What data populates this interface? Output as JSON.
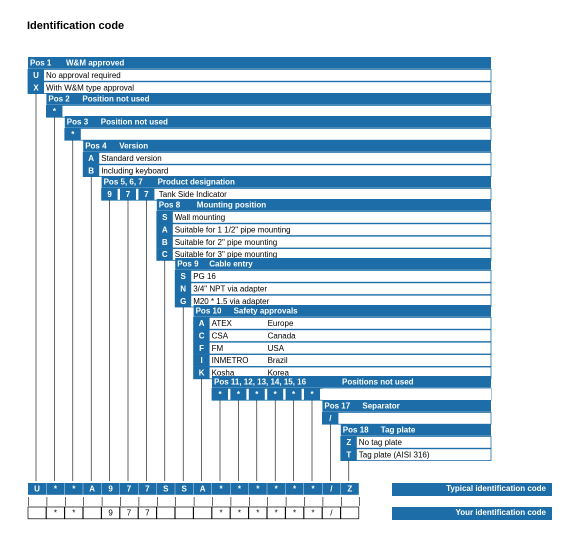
{
  "title": "Identification code",
  "colors": {
    "header": "#1d6ea8"
  },
  "groups": [
    {
      "pos": "Pos 1",
      "name": "W&M approved",
      "options": [
        {
          "code": "U",
          "text": "No approval required"
        },
        {
          "code": "X",
          "text": "With W&M type approval"
        }
      ]
    },
    {
      "pos": "Pos 2",
      "name": "Position not used",
      "options": [
        {
          "code": "*",
          "text": ""
        }
      ]
    },
    {
      "pos": "Pos 3",
      "name": "Position not used",
      "options": [
        {
          "code": "*",
          "text": ""
        }
      ]
    },
    {
      "pos": "Pos 4",
      "name": "Version",
      "options": [
        {
          "code": "A",
          "text": "Standard version"
        },
        {
          "code": "B",
          "text": "Including keyboard"
        }
      ]
    },
    {
      "pos": "Pos 5, 6, 7",
      "name": "Product designation",
      "codes": [
        "9",
        "7",
        "7"
      ],
      "text": "Tank Side Indicator"
    },
    {
      "pos": "Pos 8",
      "name": "Mounting position",
      "options": [
        {
          "code": "S",
          "text": "Wall mounting"
        },
        {
          "code": "A",
          "text": "Suitable for 1 1/2\" pipe mounting"
        },
        {
          "code": "B",
          "text": "Suitable for 2\" pipe mounting"
        },
        {
          "code": "C",
          "text": "Suitable for 3\" pipe mounting"
        }
      ]
    },
    {
      "pos": "Pos 9",
      "name": "Cable entry",
      "options": [
        {
          "code": "S",
          "text": "PG 16"
        },
        {
          "code": "N",
          "text": "3/4\" NPT via adapter"
        },
        {
          "code": "G",
          "text": "M20 * 1.5 via adapter"
        }
      ]
    },
    {
      "pos": "Pos 10",
      "name": "Safety approvals",
      "options": [
        {
          "code": "A",
          "text": "ATEX",
          "country": "Europe"
        },
        {
          "code": "C",
          "text": "CSA",
          "country": "Canada"
        },
        {
          "code": "F",
          "text": "FM",
          "country": "USA"
        },
        {
          "code": "I",
          "text": "INMETRO",
          "country": "Brazil"
        },
        {
          "code": "K",
          "text": "Kosha",
          "country": "Korea"
        }
      ]
    },
    {
      "pos": "Pos 11, 12, 13, 14, 15, 16",
      "name": "Positions not used",
      "codes": [
        "*",
        "*",
        "*",
        "*",
        "*",
        "*"
      ]
    },
    {
      "pos": "Pos 17",
      "name": "Separator",
      "options": [
        {
          "code": "/",
          "text": ""
        }
      ]
    },
    {
      "pos": "Pos 18",
      "name": "Tag plate",
      "options": [
        {
          "code": "Z",
          "text": "No tag plate"
        },
        {
          "code": "T",
          "text": "Tag plate (AISI 316)"
        }
      ]
    }
  ],
  "typical": {
    "codes": [
      "U",
      "*",
      "*",
      "A",
      "9",
      "7",
      "7",
      "S",
      "S",
      "A",
      "*",
      "*",
      "*",
      "*",
      "*",
      "*",
      "/",
      "Z"
    ],
    "label": "Typical identification code"
  },
  "yours": {
    "codes": [
      "",
      "*",
      "*",
      "",
      "9",
      "7",
      "7",
      "",
      "",
      "",
      "*",
      "*",
      "*",
      "*",
      "*",
      "*",
      "/",
      ""
    ],
    "label": "Your identification code"
  }
}
